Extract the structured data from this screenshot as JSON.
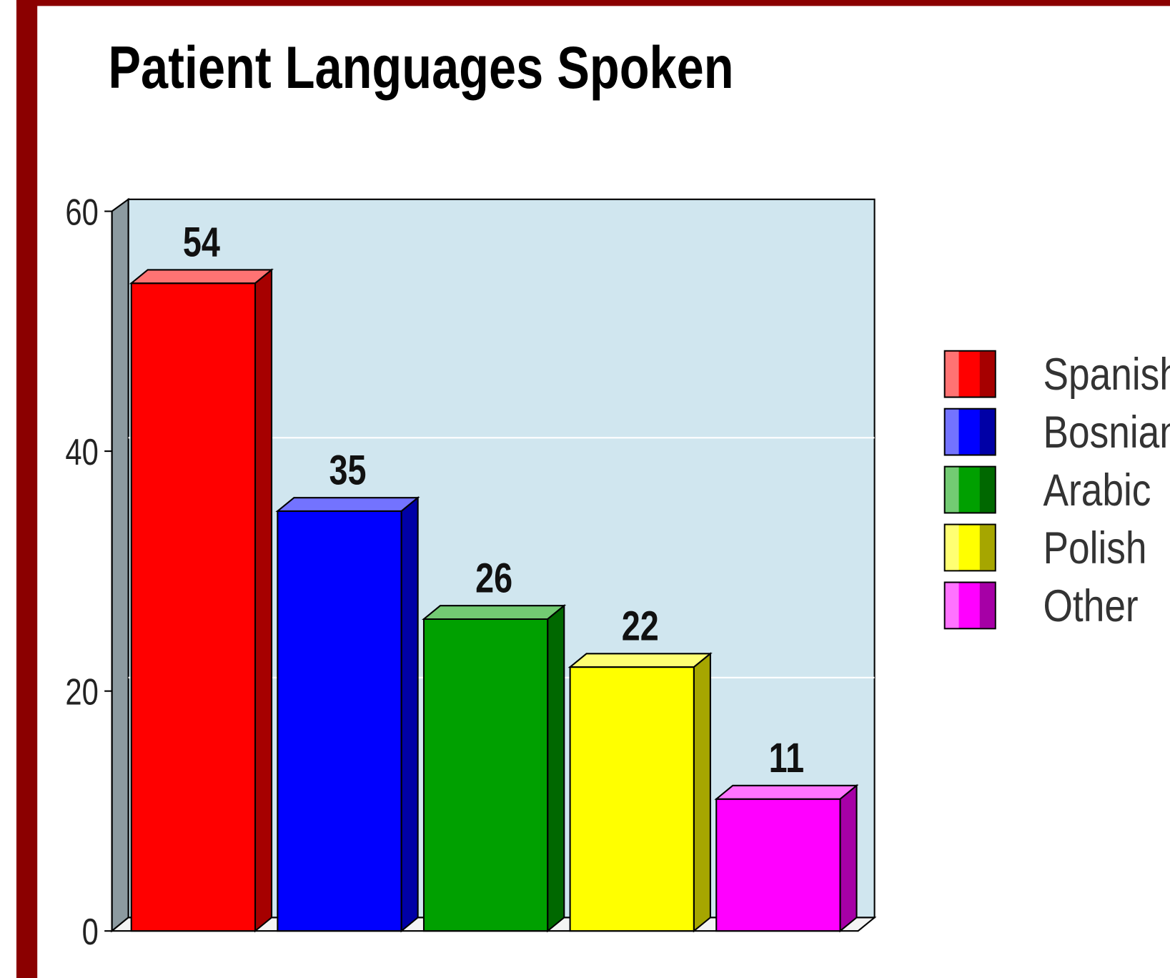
{
  "chart_data": {
    "type": "bar3d",
    "title": "Patient Languages Spoken",
    "categories": [
      "Spanish",
      "Bosnian",
      "Arabic",
      "Polish",
      "Other"
    ],
    "values": [
      54,
      35,
      26,
      22,
      11
    ],
    "colors": [
      "#ff0000",
      "#0000ff",
      "#00a000",
      "#ffff00",
      "#ff00ff"
    ],
    "ylim": [
      0,
      60
    ],
    "yticks": [
      0,
      20,
      40,
      60
    ],
    "grid": true,
    "legend": "right"
  }
}
